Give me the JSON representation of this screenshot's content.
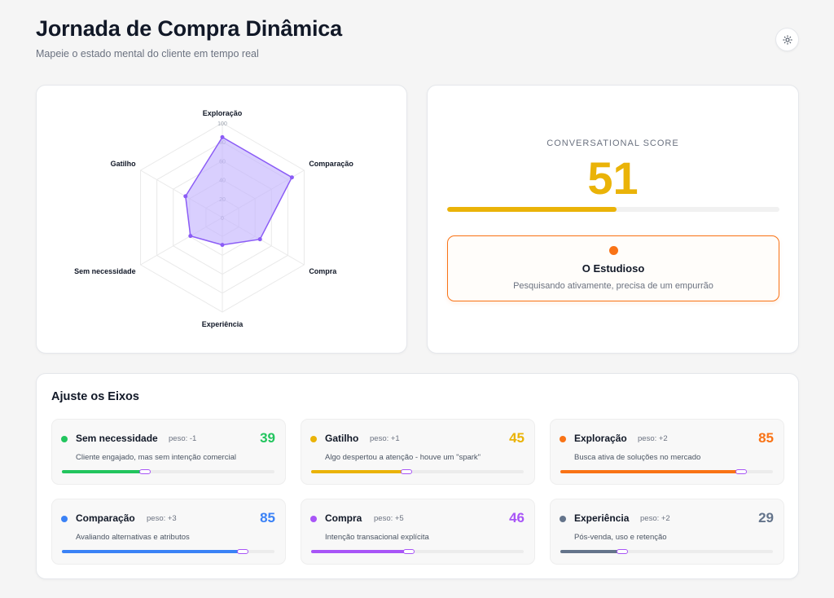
{
  "header": {
    "title": "Jornada de Compra Dinâmica",
    "subtitle": "Mapeie o estado mental do cliente em tempo real",
    "theme_icon": "sun-icon"
  },
  "radar": {
    "axes": [
      "Exploração",
      "Comparação",
      "Compra",
      "Experiência",
      "Sem necessidade",
      "Gatilho"
    ],
    "values": [
      85,
      85,
      46,
      29,
      39,
      45
    ],
    "ticks": [
      0,
      20,
      40,
      60,
      80,
      100
    ],
    "max": 100,
    "stroke_color": "#8b5cf6",
    "fill_color": "#c4b5fd"
  },
  "score": {
    "label": "CONVERSATIONAL SCORE",
    "value": "51",
    "progress_percent": 51,
    "color": "#eab308",
    "persona": {
      "name": "O Estudioso",
      "description": "Pesquisando ativamente, precisa de um empurrão",
      "color": "#f97316"
    }
  },
  "axes_panel": {
    "title": "Ajuste os Eixos",
    "items": [
      {
        "name": "Sem necessidade",
        "weight": "peso: -1",
        "value": "39",
        "percent": 39,
        "description": "Cliente engajado, mas sem intenção comercial",
        "color": "#22c55e"
      },
      {
        "name": "Gatilho",
        "weight": "peso: +1",
        "value": "45",
        "percent": 45,
        "description": "Algo despertou a atenção - houve um \"spark\"",
        "color": "#eab308"
      },
      {
        "name": "Exploração",
        "weight": "peso: +2",
        "value": "85",
        "percent": 85,
        "description": "Busca ativa de soluções no mercado",
        "color": "#f97316"
      },
      {
        "name": "Comparação",
        "weight": "peso: +3",
        "value": "85",
        "percent": 85,
        "description": "Avaliando alternativas e atributos",
        "color": "#3b82f6"
      },
      {
        "name": "Compra",
        "weight": "peso: +5",
        "value": "46",
        "percent": 46,
        "description": "Intenção transacional explícita",
        "color": "#a855f7"
      },
      {
        "name": "Experiência",
        "weight": "peso: +2",
        "value": "29",
        "percent": 29,
        "description": "Pós-venda, uso e retenção",
        "color": "#64748b"
      }
    ]
  }
}
